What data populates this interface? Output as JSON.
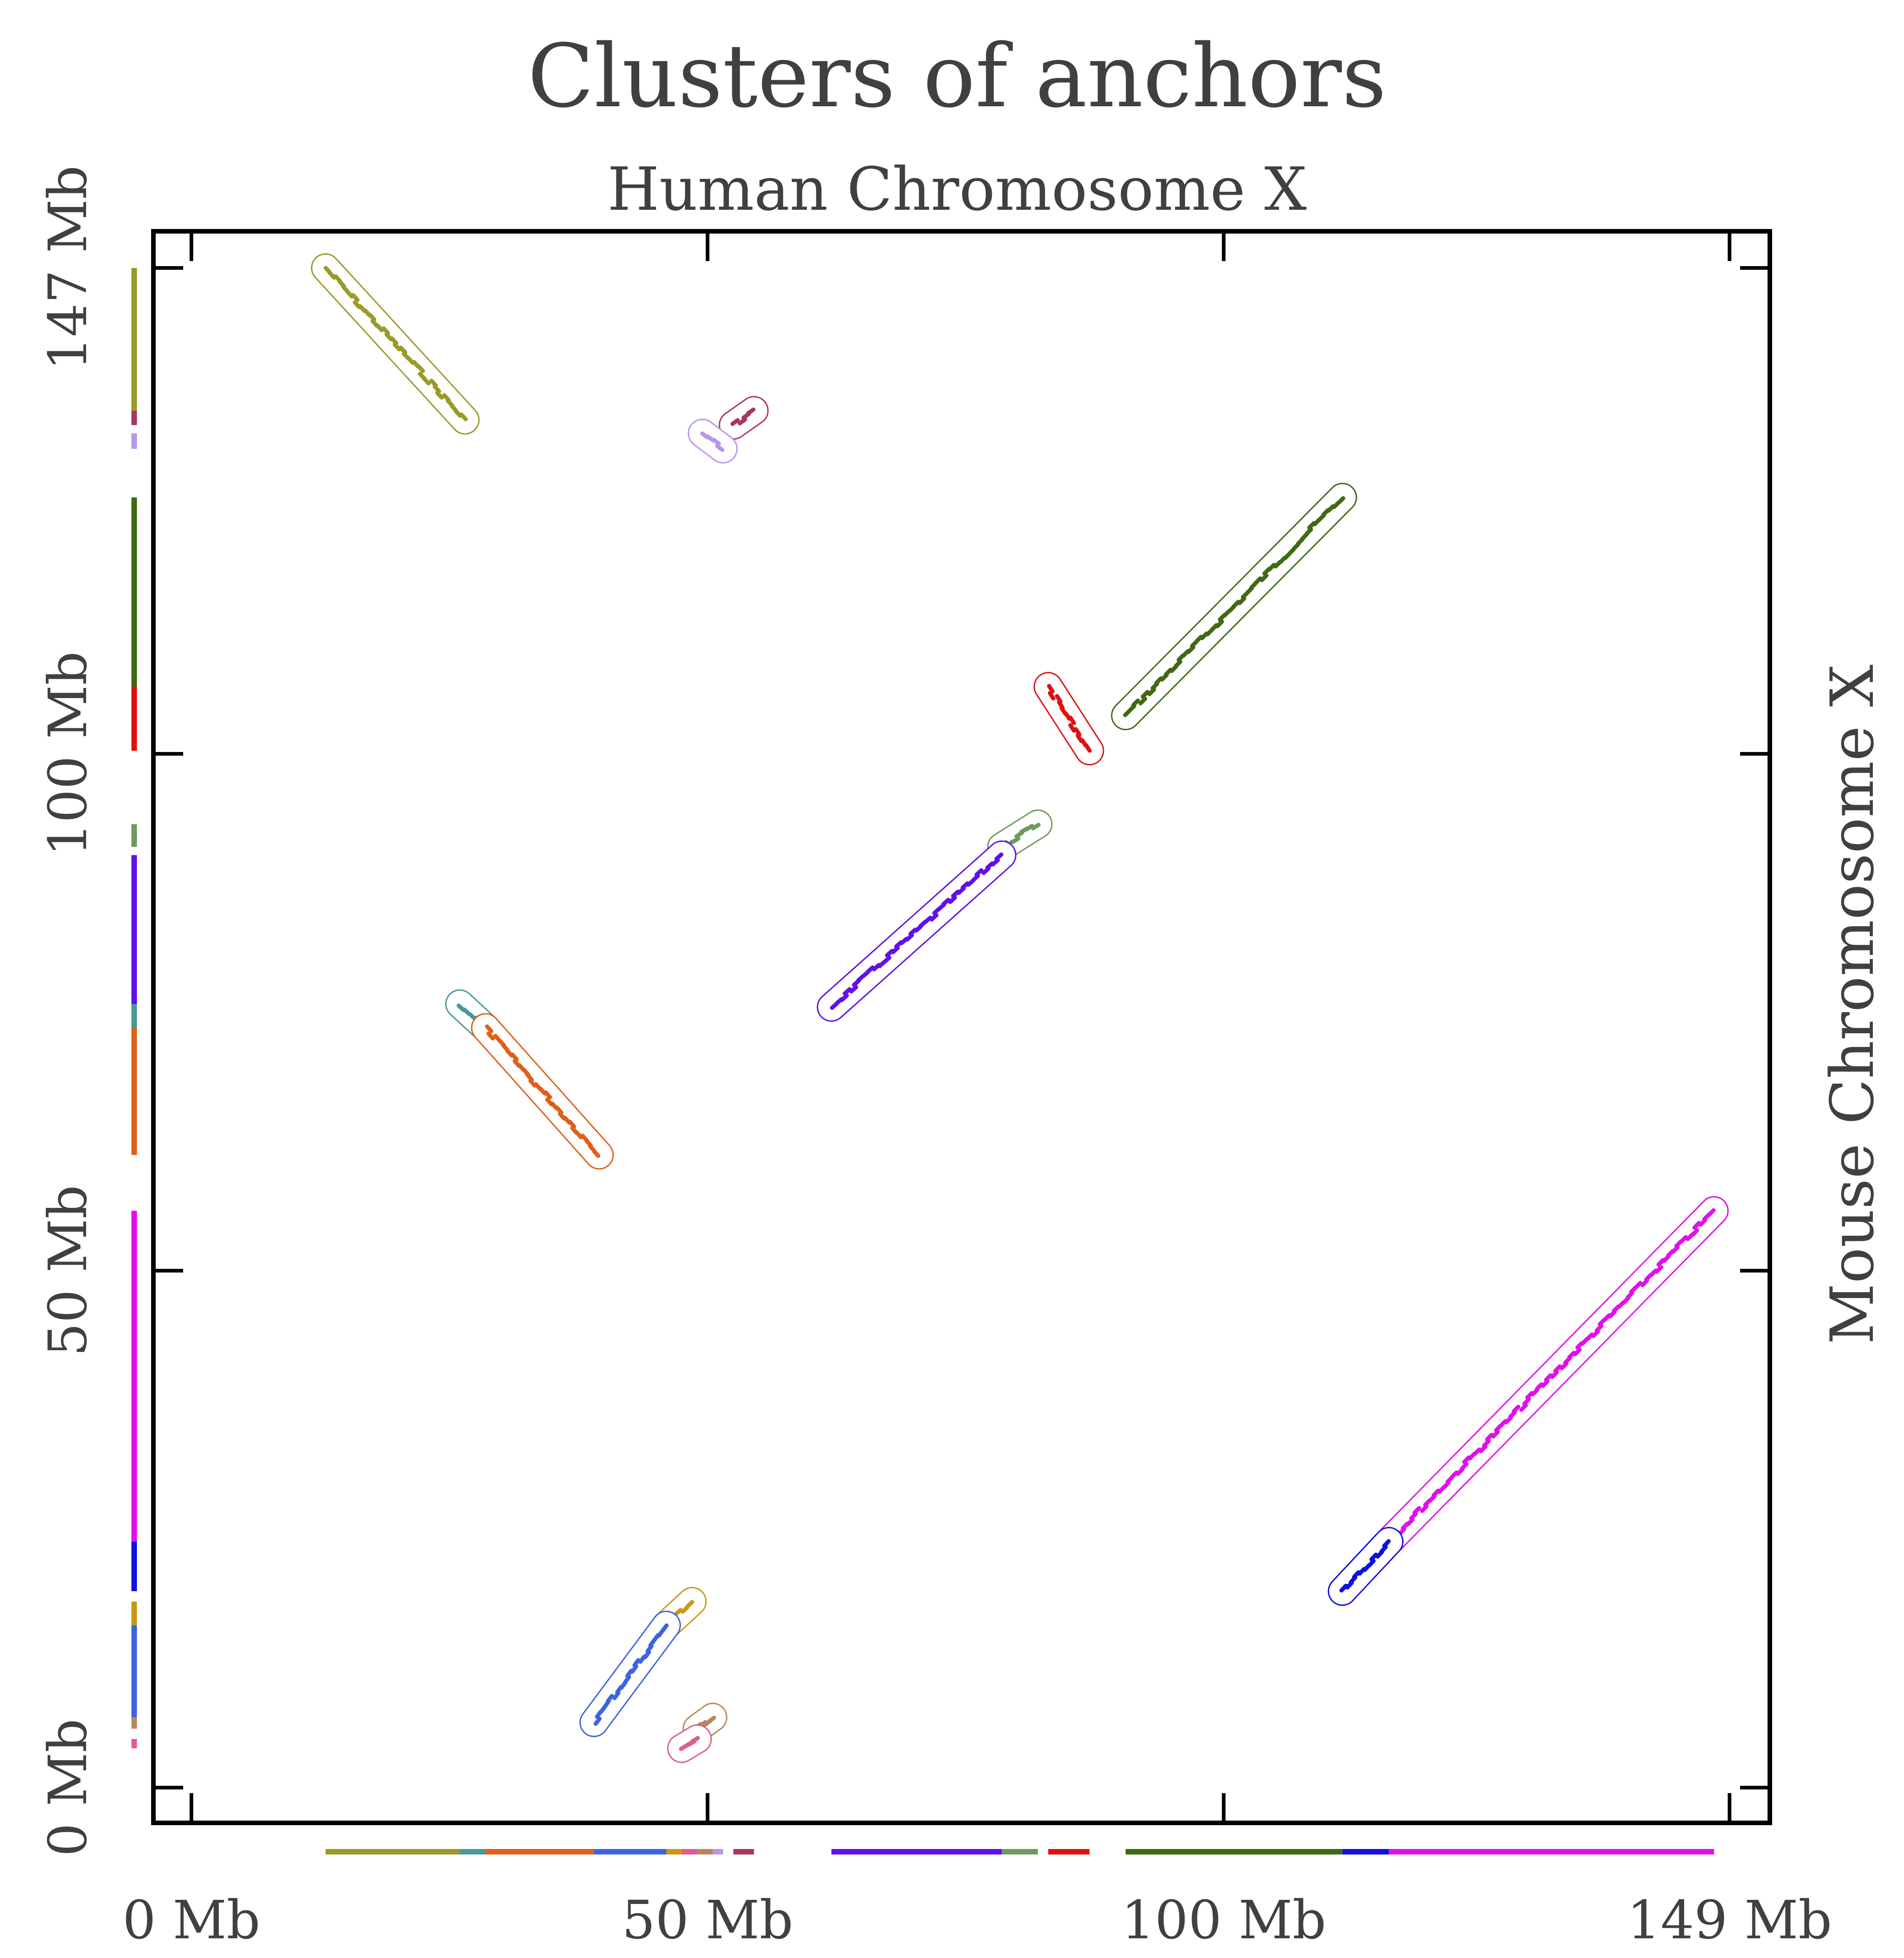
{
  "chart_data": {
    "type": "scatter",
    "title": "Clusters of anchors",
    "subtitle": "Human Chromosome X",
    "xlabel": "",
    "ylabel": "Mouse Chromosome X",
    "xlim": [
      0,
      149
    ],
    "ylim": [
      0,
      147
    ],
    "x_ticks": [
      {
        "value": 0,
        "label": "0 Mb"
      },
      {
        "value": 50,
        "label": "50 Mb"
      },
      {
        "value": 100,
        "label": "100 Mb"
      },
      {
        "value": 149,
        "label": "149 Mb"
      }
    ],
    "y_ticks": [
      {
        "value": 0,
        "label": "0 Mb"
      },
      {
        "value": 50,
        "label": "50 Mb"
      },
      {
        "value": 100,
        "label": "100 Mb"
      },
      {
        "value": 147,
        "label": "147 Mb"
      }
    ],
    "grid": false,
    "legend": "none",
    "clusters": [
      {
        "color": "#9a9a28",
        "x0": 13.0,
        "y0": 147.0,
        "x1": 26.5,
        "y1": 132.3
      },
      {
        "color": "#a83660",
        "x0": 52.5,
        "y0": 131.8,
        "x1": 54.5,
        "y1": 133.2
      },
      {
        "color": "#b896e8",
        "x0": 49.5,
        "y0": 131.0,
        "x1": 51.5,
        "y1": 129.5
      },
      {
        "color": "#3e6a12",
        "x0": 90.5,
        "y0": 103.7,
        "x1": 111.5,
        "y1": 124.8
      },
      {
        "color": "#e01010",
        "x0": 83.0,
        "y0": 106.5,
        "x1": 87.0,
        "y1": 100.3
      },
      {
        "color": "#6e9a60",
        "x0": 78.5,
        "y0": 91.0,
        "x1": 82.0,
        "y1": 93.2
      },
      {
        "color": "#6010ec",
        "x0": 62.0,
        "y0": 75.5,
        "x1": 78.5,
        "y1": 90.2
      },
      {
        "color": "#4a9898",
        "x0": 26.0,
        "y0": 75.8,
        "x1": 28.5,
        "y1": 73.5
      },
      {
        "color": "#e0601a",
        "x0": 28.5,
        "y0": 73.5,
        "x1": 39.5,
        "y1": 61.2
      },
      {
        "color": "#e010e8",
        "x0": 116.0,
        "y0": 23.8,
        "x1": 147.5,
        "y1": 55.8
      },
      {
        "color": "#1010e0",
        "x0": 111.5,
        "y0": 19.0,
        "x1": 116.0,
        "y1": 23.8
      },
      {
        "color": "#c89818",
        "x0": 46.0,
        "y0": 15.7,
        "x1": 48.5,
        "y1": 18.0
      },
      {
        "color": "#3c64e0",
        "x0": 39.0,
        "y0": 6.3,
        "x1": 46.0,
        "y1": 15.7
      },
      {
        "color": "#b8885a",
        "x0": 49.0,
        "y0": 5.7,
        "x1": 50.5,
        "y1": 6.8
      },
      {
        "color": "#e05a90",
        "x0": 47.5,
        "y0": 3.8,
        "x1": 49.0,
        "y1": 4.7
      }
    ]
  }
}
